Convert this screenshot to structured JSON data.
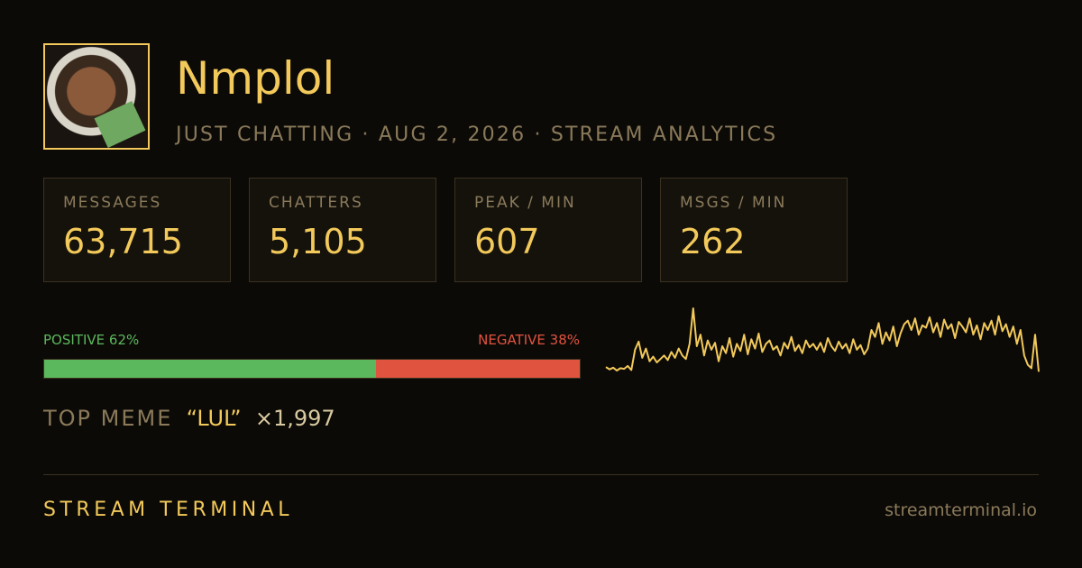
{
  "header": {
    "name": "Nmplol",
    "subtitle": "JUST CHATTING · AUG 2, 2026 · STREAM ANALYTICS"
  },
  "stats": [
    {
      "label": "MESSAGES",
      "value": "63,715"
    },
    {
      "label": "CHATTERS",
      "value": "5,105"
    },
    {
      "label": "PEAK / MIN",
      "value": "607"
    },
    {
      "label": "MSGS / MIN",
      "value": "262"
    }
  ],
  "sentiment": {
    "positive": {
      "label": "POSITIVE",
      "value": 62,
      "value_label": "62%",
      "color": "#5cb85c"
    },
    "negative": {
      "label": "NEGATIVE",
      "value": 38,
      "value_label": "38%",
      "color": "#e0533f"
    }
  },
  "top_meme": {
    "label": "TOP MEME",
    "meme": "“LUL”",
    "count": "×1,997"
  },
  "sparkline": {
    "color": "#f2c95a",
    "values": [
      100,
      80,
      95,
      70,
      90,
      85,
      110,
      75,
      250,
      320,
      180,
      260,
      150,
      190,
      140,
      170,
      200,
      160,
      230,
      180,
      260,
      200,
      170,
      300,
      607,
      280,
      380,
      200,
      330,
      250,
      310,
      150,
      280,
      220,
      350,
      190,
      300,
      240,
      380,
      210,
      340,
      260,
      390,
      230,
      300,
      330,
      250,
      280,
      200,
      310,
      260,
      360,
      240,
      290,
      220,
      330,
      270,
      300,
      250,
      310,
      230,
      350,
      280,
      240,
      320,
      260,
      300,
      220,
      340,
      250,
      290,
      210,
      260,
      420,
      360,
      480,
      300,
      400,
      330,
      450,
      280,
      390,
      470,
      500,
      420,
      520,
      380,
      460,
      440,
      530,
      400,
      480,
      360,
      510,
      430,
      470,
      350,
      490,
      450,
      400,
      520,
      380,
      460,
      340,
      480,
      420,
      500,
      380,
      540,
      410,
      470,
      360,
      450,
      300,
      420,
      200,
      120,
      90,
      380,
      60
    ]
  },
  "footer": {
    "brand": "STREAM TERMINAL",
    "url": "streamterminal.io"
  }
}
